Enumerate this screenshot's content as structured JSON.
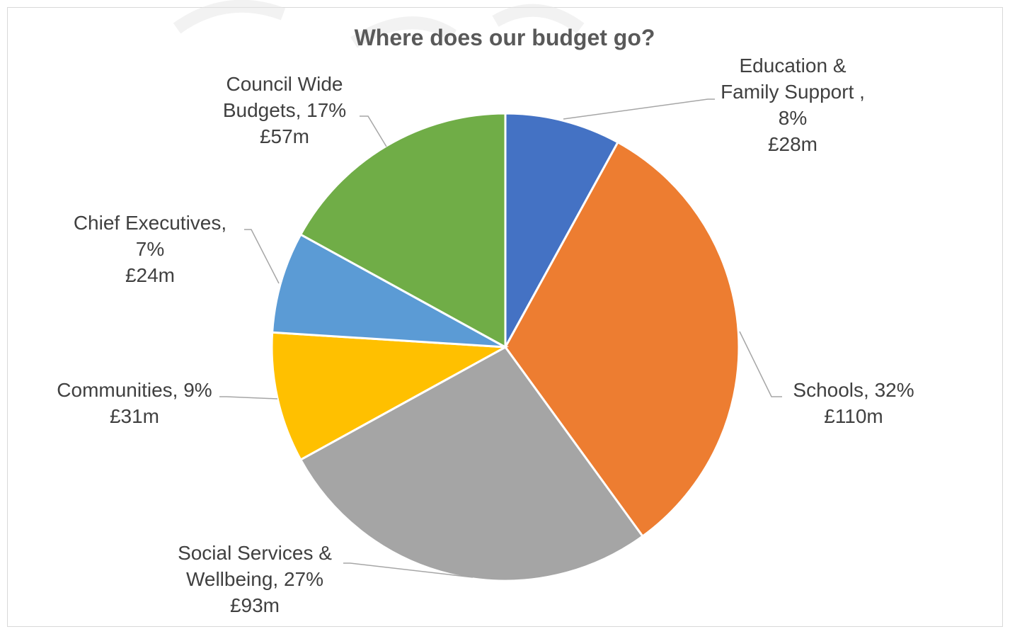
{
  "chart_data": {
    "type": "pie",
    "title": "Where does our budget go?",
    "slices": [
      {
        "name": "Education & Family Support",
        "percent": 8,
        "amount": "£28m",
        "color": "#4472c4",
        "label_lines": [
          "Education &",
          "Family Support ,",
          "8%",
          "£28m"
        ]
      },
      {
        "name": "Schools",
        "percent": 32,
        "amount": "£110m",
        "color": "#ed7d31",
        "label_lines": [
          "Schools, 32%",
          "£110m"
        ]
      },
      {
        "name": "Social Services & Wellbeing",
        "percent": 27,
        "amount": "£93m",
        "color": "#a5a5a5",
        "label_lines": [
          "Social Services &",
          "Wellbeing, 27%",
          "£93m"
        ]
      },
      {
        "name": "Communities",
        "percent": 9,
        "amount": "£31m",
        "color": "#ffc000",
        "label_lines": [
          "Communities, 9%",
          "£31m"
        ]
      },
      {
        "name": "Chief Executives",
        "percent": 7,
        "amount": "£24m",
        "color": "#5b9bd5",
        "label_lines": [
          "Chief Executives,",
          "7%",
          "£24m"
        ]
      },
      {
        "name": "Council Wide Budgets",
        "percent": 17,
        "amount": "£57m",
        "color": "#70ad47",
        "label_lines": [
          "Council Wide",
          "Budgets, 17%",
          "£57m"
        ]
      }
    ],
    "start_angle_deg": 0,
    "direction": "clockwise",
    "legend": "none"
  }
}
